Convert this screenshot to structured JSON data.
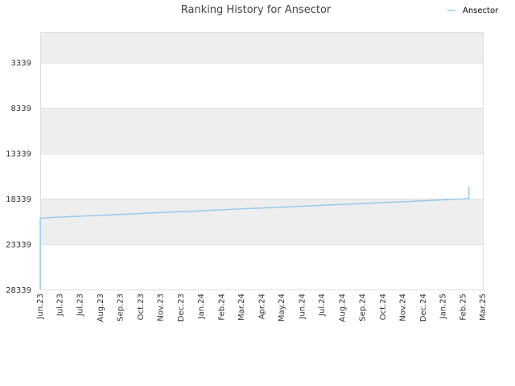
{
  "chart_data": {
    "type": "line",
    "title": "Ranking History for Ansector",
    "xlabel": "",
    "ylabel": "",
    "y_reversed": true,
    "ylim": [
      28339,
      0
    ],
    "y_ticks": [
      3339,
      8339,
      13339,
      18339,
      23339,
      28339
    ],
    "y_tick_labels": [
      "3339",
      "8339",
      "13339",
      "18339",
      "23339",
      "28339"
    ],
    "x_ticks": [
      "2023-06-01",
      "2023-07-01",
      "2023-07-31",
      "2023-08-31",
      "2023-09-30",
      "2023-10-31",
      "2023-11-30",
      "2023-12-31",
      "2024-01-30",
      "2024-03-01",
      "2024-03-31",
      "2024-05-01",
      "2024-05-31",
      "2024-07-01",
      "2024-07-31",
      "2024-08-31",
      "2024-09-30",
      "2024-10-31",
      "2024-11-30",
      "2024-12-31",
      "2025-01-30",
      "2025-03-01",
      "2025-03-31"
    ],
    "x_tick_labels": [
      "Jun.23",
      "Jul.23",
      "Jul.23",
      "Aug.23",
      "Sep.23",
      "Oct.23",
      "Nov.23",
      "Dec.23",
      "Jan.24",
      "Feb.24",
      "Mar.24",
      "Apr.24",
      "May.24",
      "Jun.24",
      "Jul.24",
      "Aug.24",
      "Sep.24",
      "Oct.24",
      "Nov.24",
      "Dec.24",
      "Jan.25",
      "Feb.25",
      "Mar.25"
    ],
    "xlim": [
      "2023-06-01",
      "2025-03-31"
    ],
    "grid": true,
    "legend_position": "top-right",
    "series": [
      {
        "name": "Ansector",
        "color": "#99ccee",
        "points": [
          [
            "2023-06-01",
            28339
          ],
          [
            "2023-06-01",
            20500
          ],
          [
            "2023-06-16",
            20420
          ],
          [
            "2023-07-15",
            20320
          ],
          [
            "2023-08-15",
            20220
          ],
          [
            "2023-09-15",
            20120
          ],
          [
            "2023-10-15",
            20020
          ],
          [
            "2023-11-15",
            19920
          ],
          [
            "2023-12-15",
            19820
          ],
          [
            "2024-01-15",
            19720
          ],
          [
            "2024-02-15",
            19620
          ],
          [
            "2024-03-15",
            19520
          ],
          [
            "2024-04-15",
            19420
          ],
          [
            "2024-05-15",
            19320
          ],
          [
            "2024-06-15",
            19220
          ],
          [
            "2024-07-15",
            19120
          ],
          [
            "2024-08-15",
            19020
          ],
          [
            "2024-09-15",
            18920
          ],
          [
            "2024-10-15",
            18820
          ],
          [
            "2024-11-15",
            18720
          ],
          [
            "2024-12-15",
            18620
          ],
          [
            "2025-01-15",
            18520
          ],
          [
            "2025-02-15",
            18420
          ],
          [
            "2025-03-10",
            18320
          ],
          [
            "2025-03-10",
            17000
          ]
        ]
      }
    ]
  }
}
